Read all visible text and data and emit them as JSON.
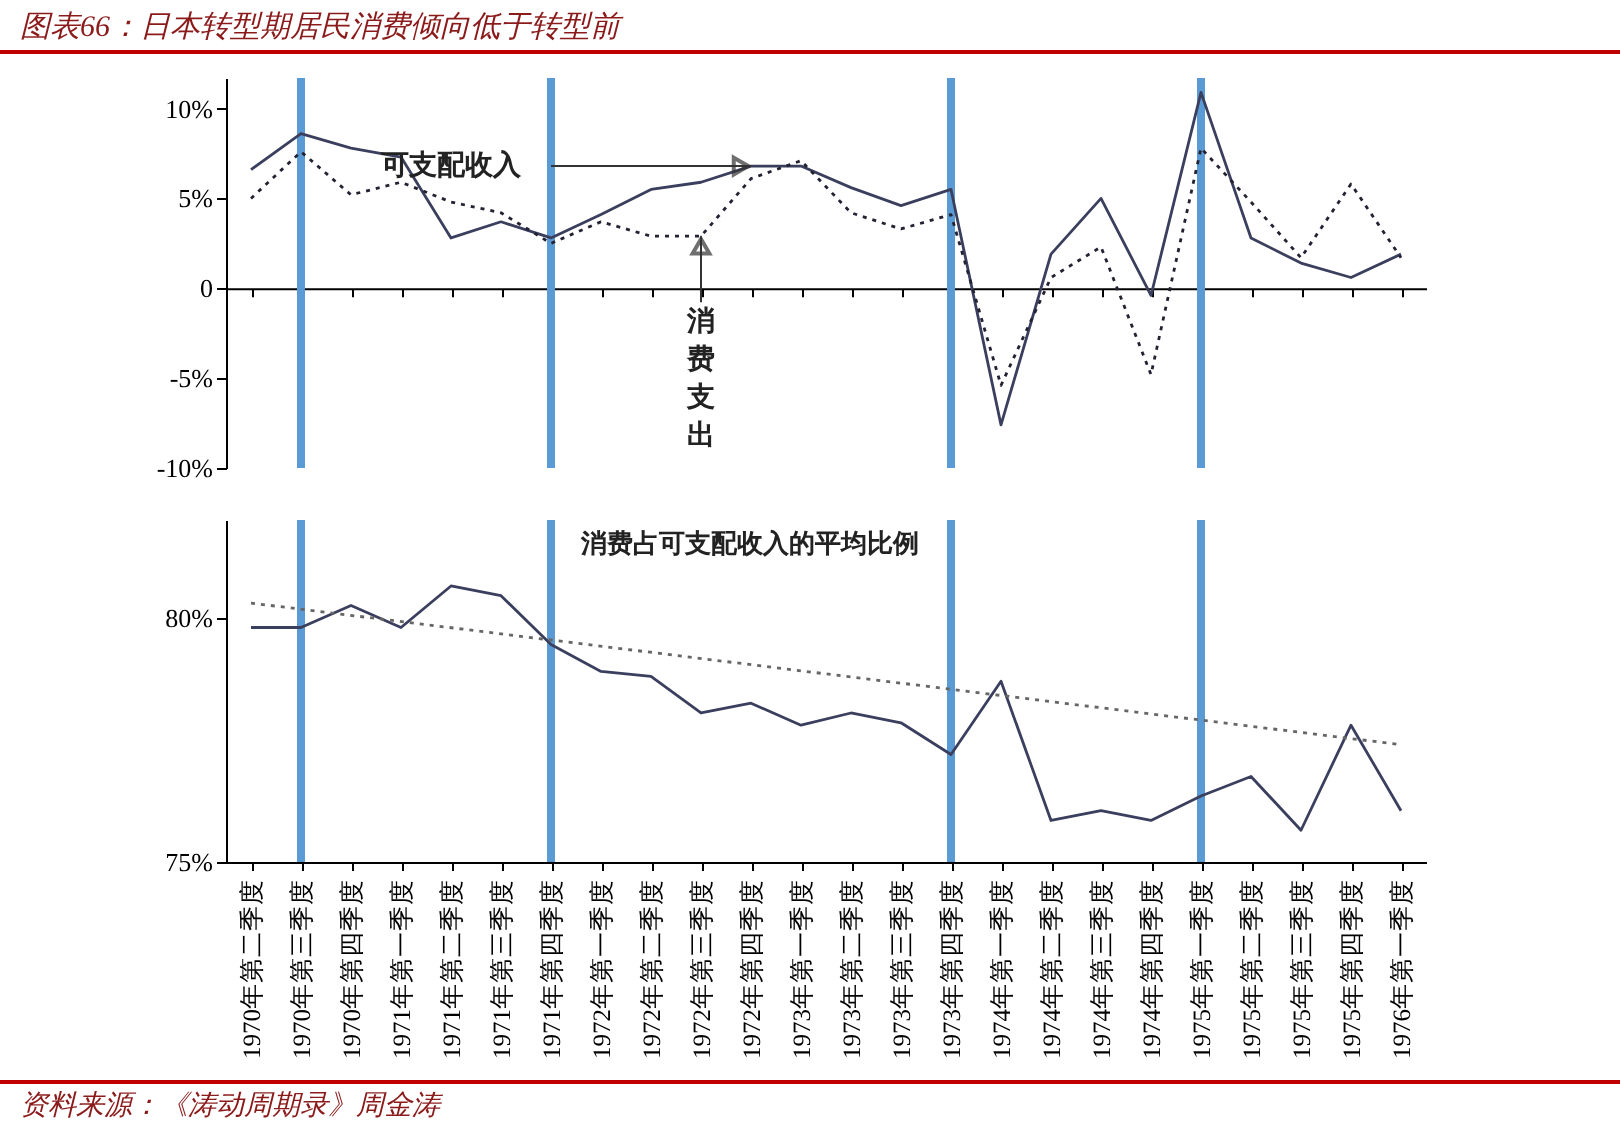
{
  "chart_data": [
    {
      "type": "line",
      "title": "图表66：日本转型期居民消费倾向低于转型前",
      "categories": [
        "1970年第二季度",
        "1970年第三季度",
        "1970年第四季度",
        "1971年第一季度",
        "1971年第二季度",
        "1971年第三季度",
        "1971年第四季度",
        "1972年第一季度",
        "1972年第二季度",
        "1972年第三季度",
        "1972年第四季度",
        "1973年第一季度",
        "1973年第二季度",
        "1973年第三季度",
        "1973年第四季度",
        "1974年第一季度",
        "1974年第二季度",
        "1974年第三季度",
        "1974年第四季度",
        "1975年第一季度",
        "1975年第二季度",
        "1975年第三季度",
        "1975年第四季度",
        "1976年第一季度"
      ],
      "series": [
        {
          "color": "#3b3f5e",
          "line_style": "solid",
          "values": [
            6.6,
            8.6,
            7.8,
            7.3,
            2.8,
            3.7,
            2.8,
            4.1,
            5.5,
            5.9,
            6.8,
            6.8,
            5.6,
            4.6,
            5.5,
            -7.6,
            1.9,
            5.0,
            -0.4,
            10.9,
            2.8,
            1.4,
            0.6,
            1.9
          ]
        },
        {
          "color": "#222233",
          "line_style": "dotted",
          "values": [
            5.0,
            7.6,
            5.2,
            5.9,
            4.8,
            4.2,
            2.5,
            3.7,
            2.9,
            2.9,
            6.1,
            7.1,
            4.2,
            3.3,
            4.1,
            -5.4,
            0.6,
            2.3,
            -4.8,
            7.8,
            4.8,
            1.7,
            5.8,
            1.7
          ]
        }
      ],
      "ylim": [
        -10,
        11.7
      ],
      "yticks": [
        {
          "value": 10,
          "label": "10%"
        },
        {
          "value": 5,
          "label": "5%"
        },
        0,
        {
          "value": -5,
          "label": "-5%"
        },
        {
          "value": -10,
          "label": "-10%"
        }
      ],
      "tick_labels": "y",
      "ref_lines": [
        {
          "axis": "x",
          "value": "1970年第三季度",
          "color": "#5b9bd5"
        },
        {
          "axis": "x",
          "value": "1971年第四季度",
          "color": "#5b9bd5"
        },
        {
          "axis": "x",
          "value": "1973年第四季度",
          "color": "#5b9bd5"
        },
        {
          "axis": "x",
          "value": "1975年第一季度",
          "color": "#5b9bd5"
        }
      ],
      "annotations": [
        {
          "text": "可支配收入",
          "x": "1972年第四季度",
          "y": 6.8
        },
        {
          "text": "消费支出",
          "x": "1972年第三季度",
          "y": 2.9
        }
      ]
    },
    {
      "type": "line",
      "categories": [
        "1970年第二季度",
        "1970年第三季度",
        "1970年第四季度",
        "1971年第一季度",
        "1971年第二季度",
        "1971年第三季度",
        "1971年第四季度",
        "1972年第一季度",
        "1972年第二季度",
        "1972年第三季度",
        "1972年第四季度",
        "1973年第一季度",
        "1973年第二季度",
        "1973年第三季度",
        "1973年第四季度",
        "1974年第一季度",
        "1974年第二季度",
        "1974年第三季度",
        "1974年第四季度",
        "1975年第一季度",
        "1975年第二季度",
        "1975年第三季度",
        "1975年第四季度",
        "1976年第一季度"
      ],
      "series": [
        {
          "color": "#3b3f5e",
          "line_style": "solid",
          "values": [
            79.8,
            79.8,
            80.25,
            79.8,
            80.65,
            80.45,
            79.45,
            78.9,
            78.8,
            78.05,
            78.25,
            77.8,
            78.05,
            77.85,
            77.2,
            78.7,
            75.85,
            76.05,
            75.85,
            76.35,
            76.75,
            75.65,
            77.8,
            76.05
          ]
        },
        {
          "type": "line",
          "color": "#666666",
          "line_style": "dotted",
          "x": [
            "1970年第二季度",
            "1976年第一季度"
          ],
          "values": [
            80.3,
            77.4
          ]
        }
      ],
      "ylim": [
        75,
        82
      ],
      "yticks": [
        {
          "value": 80,
          "label": "80%"
        },
        {
          "value": 75,
          "label": "75%"
        }
      ],
      "ref_lines": [
        {
          "axis": "x",
          "value": "1970年第三季度",
          "color": "#5b9bd5"
        },
        {
          "axis": "x",
          "value": "1971年第四季度",
          "color": "#5b9bd5"
        },
        {
          "axis": "x",
          "value": "1973年第四季度",
          "color": "#5b9bd5"
        },
        {
          "axis": "x",
          "value": "1975年第一季度",
          "color": "#5b9bd5"
        }
      ],
      "annotations": [
        "消费占可支配收入的平均比例",
        "资料来源：《涛动周期录》周金涛"
      ]
    }
  ]
}
